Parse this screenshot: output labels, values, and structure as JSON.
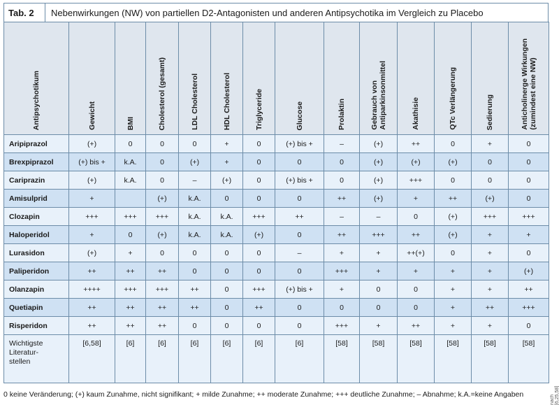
{
  "tab_label": "Tab. 2",
  "title": "Nebenwirkungen (NW) von partiellen D2-Antagonisten und anderen Antipsychotika im Vergleich zu Placebo",
  "headers": [
    "Antipsychotikum",
    "Gewicht",
    "BMI",
    "Cholesterol (gesamt)",
    "LDL Cholesterol",
    "HDL Cholesterol",
    "Triglyceride",
    "Glucose",
    "Prolaktin",
    "Gebrauch von\nAntiparkinsonmittel",
    "Akathisie",
    "QTc Verlängerung",
    "Sedierung",
    "Anticholinerge Wirkungen\n(zumindest eine NW)"
  ],
  "rows": [
    {
      "drug": "Aripiprazol",
      "cells": [
        "(+)",
        "0",
        "0",
        "0",
        "+",
        "0",
        "(+) bis +",
        "–",
        "(+)",
        "++",
        "0",
        "+",
        "0"
      ]
    },
    {
      "drug": "Brexpiprazol",
      "cells": [
        "(+) bis +",
        "k.A.",
        "0",
        "(+)",
        "+",
        "0",
        "0",
        "0",
        "(+)",
        "(+)",
        "(+)",
        "0",
        "0"
      ]
    },
    {
      "drug": "Cariprazin",
      "cells": [
        "(+)",
        "k.A.",
        "0",
        "–",
        "(+)",
        "0",
        "(+) bis +",
        "0",
        "(+)",
        "+++",
        "0",
        "0",
        "0"
      ]
    },
    {
      "drug": "Amisulprid",
      "cells": [
        "+",
        "",
        "(+)",
        "k.A.",
        "0",
        "0",
        "0",
        "++",
        "(+)",
        "+",
        "++",
        "(+)",
        "0"
      ]
    },
    {
      "drug": "Clozapin",
      "cells": [
        "+++",
        "+++",
        "+++",
        "k.A.",
        "k.A.",
        "+++",
        "++",
        "–",
        "–",
        "0",
        "(+)",
        "+++",
        "+++"
      ]
    },
    {
      "drug": "Haloperidol",
      "cells": [
        "+",
        "0",
        "(+)",
        "k.A.",
        "k.A.",
        "(+)",
        "0",
        "++",
        "+++",
        "++",
        "(+)",
        "+",
        "+"
      ]
    },
    {
      "drug": "Lurasidon",
      "cells": [
        "(+)",
        "+",
        "0",
        "0",
        "0",
        "0",
        "–",
        "+",
        "+",
        "++(+)",
        "0",
        "+",
        "0"
      ]
    },
    {
      "drug": "Paliperidon",
      "cells": [
        "++",
        "++",
        "++",
        "0",
        "0",
        "0",
        "0",
        "+++",
        "+",
        "+",
        "+",
        "+",
        "(+)"
      ]
    },
    {
      "drug": "Olanzapin",
      "cells": [
        "++++",
        "+++",
        "+++",
        "++",
        "0",
        "+++",
        "(+) bis +",
        "+",
        "0",
        "0",
        "+",
        "+",
        "++"
      ]
    },
    {
      "drug": "Quetiapin",
      "cells": [
        "++",
        "++",
        "++",
        "++",
        "0",
        "++",
        "0",
        "0",
        "0",
        "0",
        "+",
        "++",
        "+++"
      ]
    },
    {
      "drug": "Risperidon",
      "cells": [
        "++",
        "++",
        "++",
        "0",
        "0",
        "0",
        "0",
        "+++",
        "+",
        "++",
        "+",
        "+",
        "0"
      ]
    }
  ],
  "literature": {
    "label": "Wichtigste Literatur-stellen",
    "label_lines": [
      "Wichtigste",
      "Literatur-",
      "stellen"
    ],
    "cells": [
      "[6,58]",
      "[6]",
      "[6]",
      "[6]",
      "[6]",
      "[6]",
      "[6]",
      "[58]",
      "[58]",
      "[58]",
      "[58]",
      "[58]",
      "[58]"
    ]
  },
  "footnote": "0 keine Veränderung; (+) kaum Zunahme, nicht signifikant; + milde Zunahme; ++ moderate Zunahme; +++ deutliche Zunahme; – Abnahme; k.A.=keine Angaben",
  "source_note": "nach [6,25,58]"
}
